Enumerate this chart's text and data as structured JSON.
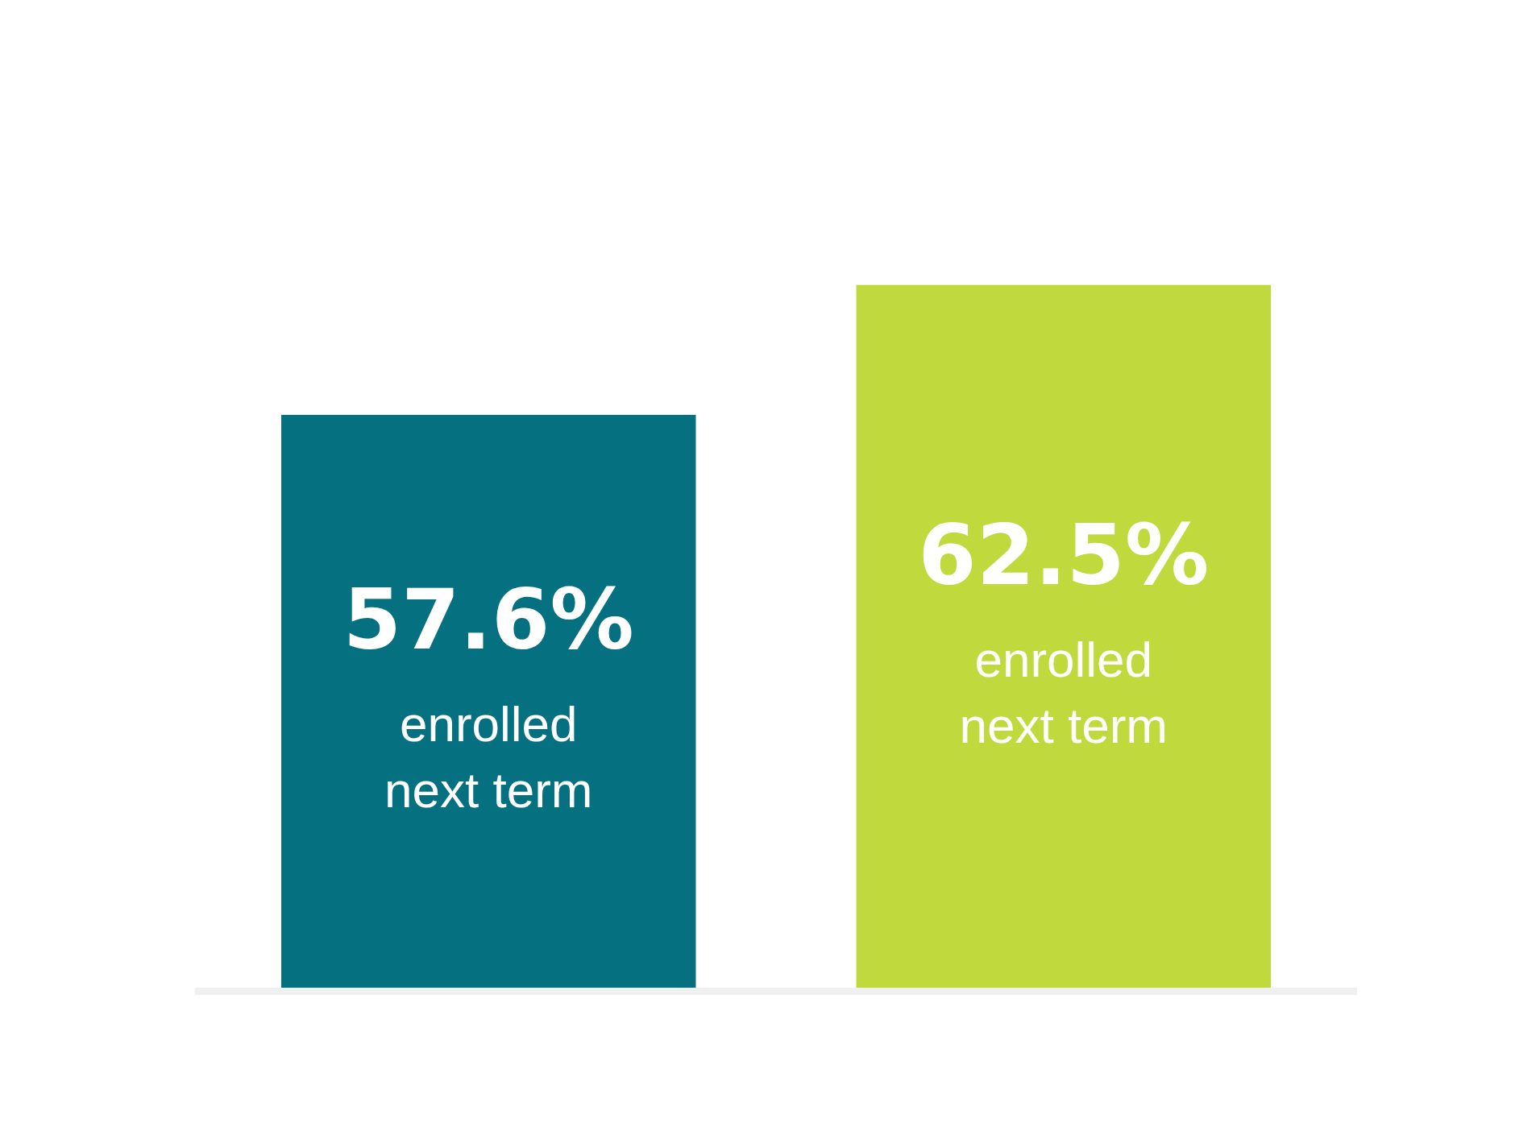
{
  "chart_data": {
    "type": "bar",
    "categories": [
      null,
      null
    ],
    "values": [
      57.6,
      62.5
    ],
    "colors": [
      "#05707f",
      "#c0d93c"
    ],
    "value_labels": [
      "57.6%",
      "62.5%"
    ],
    "annotations": [
      "enrolled next term",
      "enrolled next term"
    ],
    "ylim": [
      36,
      73
    ]
  }
}
